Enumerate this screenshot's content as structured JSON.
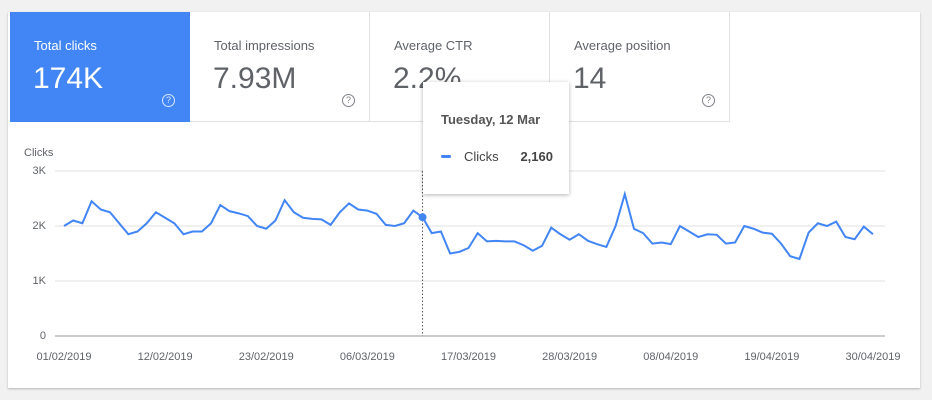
{
  "metrics": [
    {
      "label": "Total clicks",
      "value": "174K"
    },
    {
      "label": "Total impressions",
      "value": "7.93M"
    },
    {
      "label": "Average CTR",
      "value": "2.2%"
    },
    {
      "label": "Average position",
      "value": "14"
    }
  ],
  "chart_data": {
    "type": "line",
    "ylabel": "Clicks",
    "categories": [
      "01/02/2019",
      null,
      null,
      null,
      null,
      null,
      null,
      null,
      null,
      null,
      null,
      "12/02/2019",
      null,
      null,
      null,
      null,
      null,
      null,
      null,
      null,
      null,
      null,
      "23/02/2019",
      null,
      null,
      null,
      null,
      null,
      null,
      null,
      null,
      null,
      null,
      "06/03/2019",
      null,
      null,
      null,
      null,
      null,
      null,
      null,
      null,
      null,
      null,
      "17/03/2019",
      null,
      null,
      null,
      null,
      null,
      null,
      null,
      null,
      null,
      null,
      "28/03/2019",
      null,
      null,
      null,
      null,
      null,
      null,
      null,
      null,
      null,
      null,
      "08/04/2019",
      null,
      null,
      null,
      null,
      null,
      null,
      null,
      null,
      null,
      null,
      "19/04/2019",
      null,
      null,
      null,
      null,
      null,
      null,
      null,
      null,
      null,
      null,
      "30/04/2019"
    ],
    "series": [
      {
        "name": "Clicks",
        "color": "#4285f4",
        "values": [
          2000,
          2100,
          2050,
          2450,
          2300,
          2250,
          2050,
          1850,
          1900,
          2050,
          2250,
          2150,
          2050,
          1850,
          1900,
          1900,
          2050,
          2380,
          2270,
          2230,
          2180,
          2000,
          1950,
          2100,
          2470,
          2250,
          2150,
          2130,
          2120,
          2020,
          2250,
          2410,
          2300,
          2280,
          2220,
          2020,
          2000,
          2050,
          2280,
          2160,
          1870,
          1900,
          1500,
          1530,
          1600,
          1870,
          1720,
          1730,
          1720,
          1720,
          1650,
          1550,
          1640,
          1970,
          1850,
          1750,
          1850,
          1730,
          1670,
          1620,
          2000,
          2580,
          1950,
          1870,
          1680,
          1700,
          1670,
          2000,
          1900,
          1800,
          1850,
          1840,
          1680,
          1700,
          2000,
          1950,
          1880,
          1860,
          1680,
          1450,
          1400,
          1880,
          2050,
          2000,
          2080,
          1800,
          1760,
          1990,
          1850
        ]
      }
    ],
    "ylim": [
      0,
      3000
    ],
    "yticks": [
      0,
      {
        "value": 1000,
        "label": "1K"
      },
      {
        "value": 2000,
        "label": "2K"
      },
      {
        "value": 3000,
        "label": "3K"
      }
    ],
    "grid": true,
    "tooltip": {
      "title": "Tuesday, 12 Mar",
      "series": "Clicks",
      "value": {
        "value": 2160,
        "label": "2,160"
      }
    }
  }
}
